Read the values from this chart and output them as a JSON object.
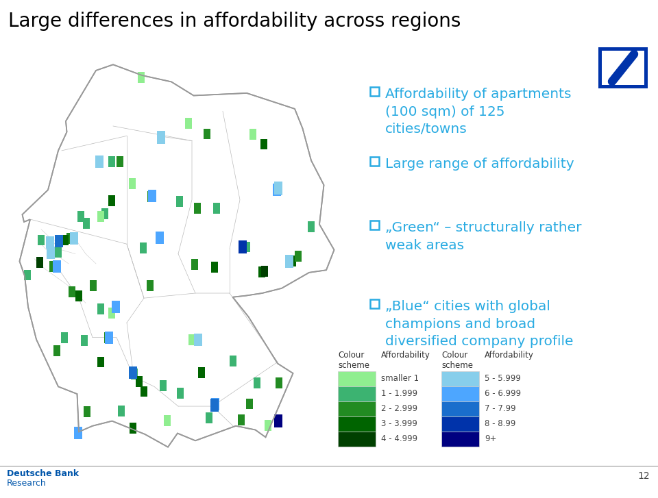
{
  "title": "Large differences in affordability across regions",
  "title_color": "#000000",
  "title_fontsize": 20,
  "background_color": "#ffffff",
  "bullet_color": "#29abe2",
  "bullet_text_color": "#29abe2",
  "bullets": [
    "Affordability of apartments\n(100 sqm) of 125\ncities/towns",
    "Large range of affordability",
    "„Green“ – structurally rather\nweak areas",
    "„Blue“ cities with global\nchampions and broad\ndiversified company profile"
  ],
  "green_colors": [
    "#90ee90",
    "#3cb371",
    "#228b22",
    "#006400",
    "#004000"
  ],
  "green_labels": [
    "smaller 1",
    "1 - 1.999",
    "2 - 2.999",
    "3 - 3.999",
    "4 - 4.999"
  ],
  "blue_colors": [
    "#87ceeb",
    "#4da6ff",
    "#1a6ecc",
    "#0033aa",
    "#000080"
  ],
  "blue_labels": [
    "5 - 5.999",
    "6 - 6.999",
    "7 - 7.99",
    "8 - 8.99",
    "9+"
  ],
  "footer_text1": "Deutsche Bank",
  "footer_text2": "Research",
  "footer_color": "#0055aa",
  "page_number": "12",
  "db_logo_color": "#0033aa",
  "map_border_color": "#999999",
  "map_fill_color": "#ffffff",
  "map_bg_color": "#ffffff"
}
